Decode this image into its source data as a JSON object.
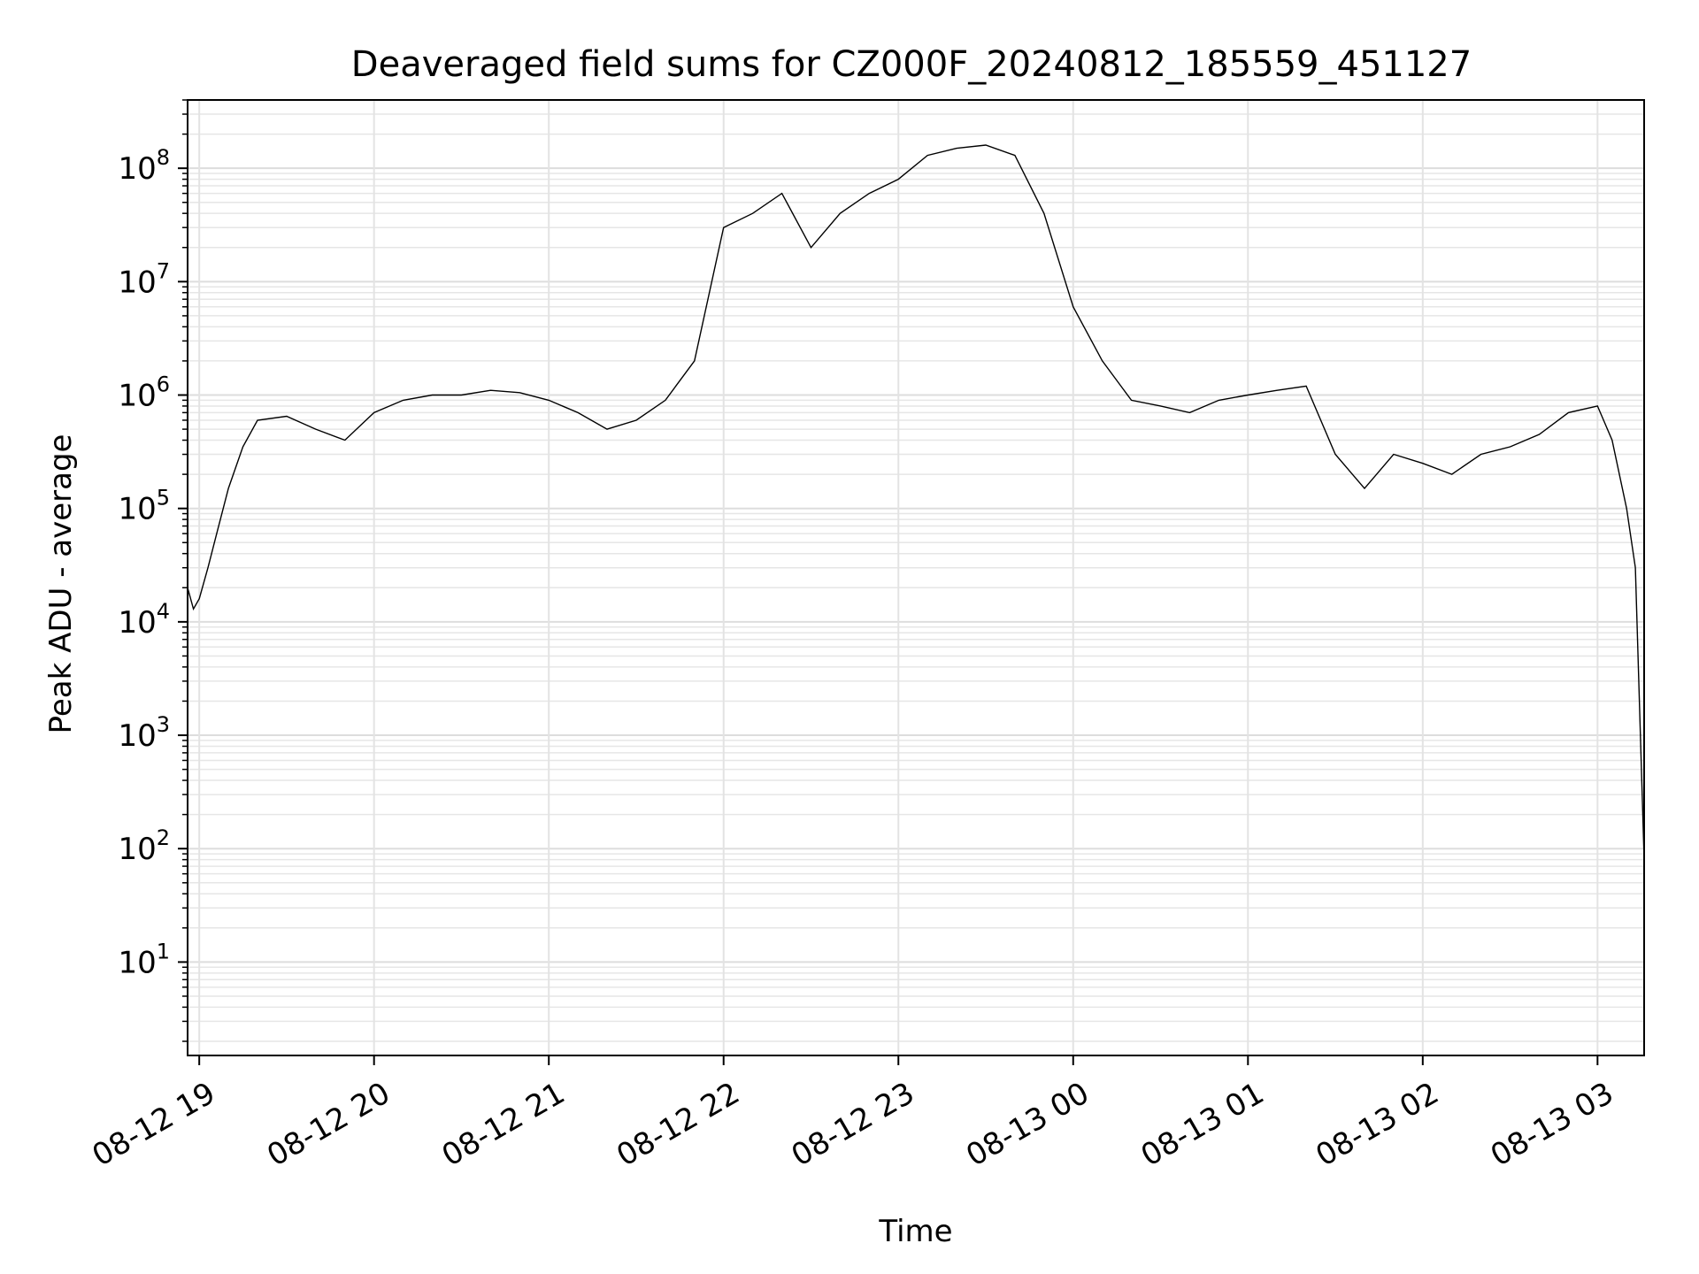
{
  "chart_data": {
    "type": "line",
    "title": "Deaveraged field sums for CZ000F_20240812_185559_451127",
    "xlabel": "Time",
    "ylabel": "Peak ADU - average",
    "yscale": "log",
    "ylim": [
      1.5,
      400000000
    ],
    "xlim": [
      "2024-08-12 18:56",
      "2024-08-13 03:16"
    ],
    "grid": true,
    "line_color": "#000000",
    "x_ticks": [
      {
        "time": "2024-08-12 19:00",
        "label": "08-12 19"
      },
      {
        "time": "2024-08-12 20:00",
        "label": "08-12 20"
      },
      {
        "time": "2024-08-12 21:00",
        "label": "08-12 21"
      },
      {
        "time": "2024-08-12 22:00",
        "label": "08-12 22"
      },
      {
        "time": "2024-08-12 23:00",
        "label": "08-12 23"
      },
      {
        "time": "2024-08-13 00:00",
        "label": "08-13 00"
      },
      {
        "time": "2024-08-13 01:00",
        "label": "08-13 01"
      },
      {
        "time": "2024-08-13 02:00",
        "label": "08-13 02"
      },
      {
        "time": "2024-08-13 03:00",
        "label": "08-13 03"
      }
    ],
    "y_ticks": [
      {
        "value": 10,
        "base": "10",
        "exp": "1"
      },
      {
        "value": 100,
        "base": "10",
        "exp": "2"
      },
      {
        "value": 1000,
        "base": "10",
        "exp": "3"
      },
      {
        "value": 10000,
        "base": "10",
        "exp": "4"
      },
      {
        "value": 100000,
        "base": "10",
        "exp": "5"
      },
      {
        "value": 1000000,
        "base": "10",
        "exp": "6"
      },
      {
        "value": 10000000,
        "base": "10",
        "exp": "7"
      },
      {
        "value": 100000000,
        "base": "10",
        "exp": "8"
      }
    ],
    "series": [
      {
        "x": [
          "2024-08-12 18:56",
          "2024-08-12 18:58",
          "2024-08-12 19:00",
          "2024-08-12 19:03",
          "2024-08-12 19:06",
          "2024-08-12 19:10",
          "2024-08-12 19:15",
          "2024-08-12 19:20",
          "2024-08-12 19:30",
          "2024-08-12 19:40",
          "2024-08-12 19:50",
          "2024-08-12 20:00",
          "2024-08-12 20:10",
          "2024-08-12 20:20",
          "2024-08-12 20:30",
          "2024-08-12 20:40",
          "2024-08-12 20:50",
          "2024-08-12 21:00",
          "2024-08-12 21:10",
          "2024-08-12 21:20",
          "2024-08-12 21:30",
          "2024-08-12 21:40",
          "2024-08-12 21:50",
          "2024-08-12 22:00",
          "2024-08-12 22:10",
          "2024-08-12 22:20",
          "2024-08-12 22:30",
          "2024-08-12 22:40",
          "2024-08-12 22:50",
          "2024-08-12 23:00",
          "2024-08-12 23:10",
          "2024-08-12 23:20",
          "2024-08-12 23:30",
          "2024-08-12 23:40",
          "2024-08-12 23:50",
          "2024-08-13 00:00",
          "2024-08-13 00:10",
          "2024-08-13 00:20",
          "2024-08-13 00:30",
          "2024-08-13 00:40",
          "2024-08-13 00:50",
          "2024-08-13 01:00",
          "2024-08-13 01:10",
          "2024-08-13 01:20",
          "2024-08-13 01:30",
          "2024-08-13 01:40",
          "2024-08-13 01:50",
          "2024-08-13 02:00",
          "2024-08-13 02:10",
          "2024-08-13 02:20",
          "2024-08-13 02:30",
          "2024-08-13 02:40",
          "2024-08-13 02:50",
          "2024-08-13 03:00",
          "2024-08-13 03:05",
          "2024-08-13 03:10",
          "2024-08-13 03:13",
          "2024-08-13 03:16"
        ],
        "y": [
          20000,
          13000,
          16000,
          30000,
          60000,
          150000,
          350000,
          600000,
          650000,
          500000,
          400000,
          700000,
          900000,
          1000000,
          1000000,
          1100000,
          1050000,
          900000,
          700000,
          500000,
          600000,
          900000,
          2000000,
          30000000,
          40000000,
          60000000,
          20000000,
          40000000,
          60000000,
          80000000,
          130000000,
          150000000,
          160000000,
          130000000,
          40000000,
          6000000,
          2000000,
          900000,
          800000,
          700000,
          900000,
          1000000,
          1100000,
          1200000,
          300000,
          150000,
          300000,
          250000,
          200000,
          300000,
          350000,
          450000,
          700000,
          800000,
          400000,
          100000,
          30000,
          80
        ]
      }
    ]
  }
}
